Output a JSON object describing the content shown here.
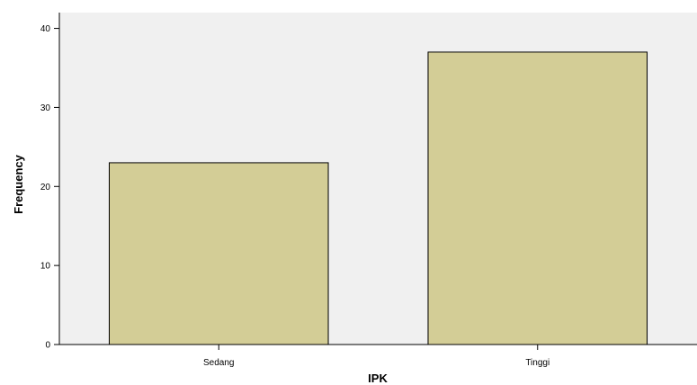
{
  "chart_data": {
    "type": "bar",
    "title": "",
    "xlabel": "IPK",
    "ylabel": "Frequency",
    "categories": [
      "Sedang",
      "Tinggi"
    ],
    "values": [
      23,
      37
    ],
    "ylim": [
      0,
      42
    ],
    "yticks": [
      0,
      10,
      20,
      30,
      40
    ],
    "grid": false,
    "legend": "none",
    "colors": {
      "bar_fill": "#d3cd96",
      "bar_stroke": "#000000",
      "plot_background": "#f0f0f0",
      "axis": "#000000"
    }
  }
}
